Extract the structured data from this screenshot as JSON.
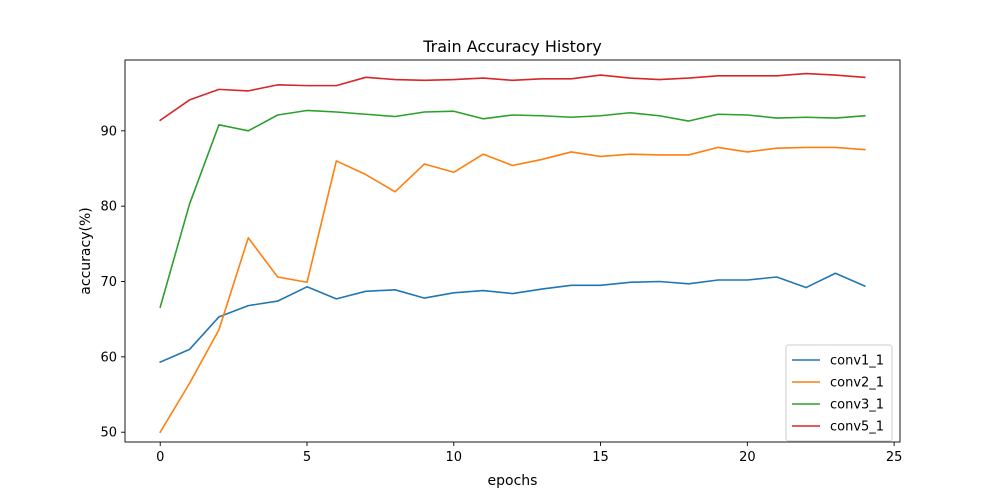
{
  "chart_data": {
    "type": "line",
    "title": "Train Accuracy History",
    "xlabel": "epochs",
    "ylabel": "accuracy(%)",
    "xlim": [
      -1.2,
      25.2
    ],
    "ylim": [
      48.7,
      99.4
    ],
    "xticks": [
      0,
      5,
      10,
      15,
      20,
      25
    ],
    "yticks": [
      50,
      60,
      70,
      80,
      90
    ],
    "grid": false,
    "legend_position": "lower-right",
    "x": [
      0,
      1,
      2,
      3,
      4,
      5,
      6,
      7,
      8,
      9,
      10,
      11,
      12,
      13,
      14,
      15,
      16,
      17,
      18,
      19,
      20,
      21,
      22,
      23,
      24
    ],
    "series": [
      {
        "name": "conv1_1",
        "color": "#1f77b4",
        "values": [
          59.3,
          61.0,
          65.3,
          66.8,
          67.4,
          69.3,
          67.7,
          68.7,
          68.9,
          67.8,
          68.5,
          68.8,
          68.4,
          69.0,
          69.5,
          69.5,
          69.9,
          70.0,
          69.7,
          70.2,
          70.2,
          70.6,
          69.2,
          71.1,
          69.4
        ]
      },
      {
        "name": "conv2_1",
        "color": "#ff7f0e",
        "values": [
          50.0,
          56.5,
          63.6,
          75.8,
          70.6,
          69.9,
          86.0,
          84.2,
          81.9,
          85.6,
          84.5,
          86.9,
          85.4,
          86.2,
          87.2,
          86.6,
          86.9,
          86.8,
          86.8,
          87.8,
          87.2,
          87.7,
          87.8,
          87.8,
          87.5
        ]
      },
      {
        "name": "conv3_1",
        "color": "#2ca02c",
        "values": [
          66.6,
          80.3,
          90.8,
          90.0,
          92.1,
          92.7,
          92.5,
          92.2,
          91.9,
          92.5,
          92.6,
          91.6,
          92.1,
          92.0,
          91.8,
          92.0,
          92.4,
          92.0,
          91.3,
          92.2,
          92.1,
          91.7,
          91.8,
          91.7,
          92.0
        ]
      },
      {
        "name": "conv5_1",
        "color": "#d62728",
        "values": [
          91.4,
          94.1,
          95.5,
          95.3,
          96.1,
          96.0,
          96.0,
          97.1,
          96.8,
          96.7,
          96.8,
          97.0,
          96.7,
          96.9,
          96.9,
          97.4,
          97.0,
          96.8,
          97.0,
          97.3,
          97.3,
          97.3,
          97.6,
          97.4,
          97.1
        ]
      }
    ]
  }
}
